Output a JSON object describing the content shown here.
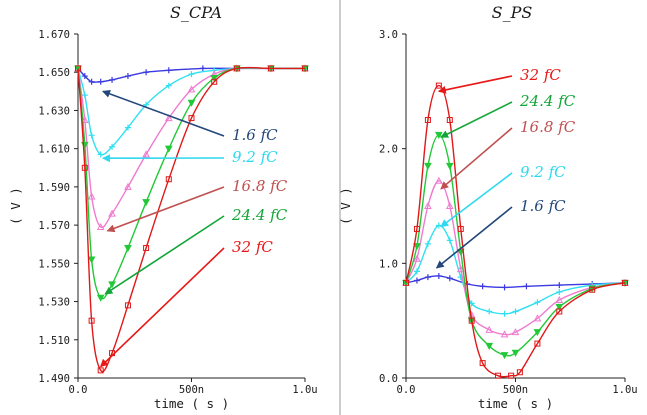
{
  "chart_data": [
    {
      "type": "line",
      "title": "S_CPA",
      "xlabel": "time ( s )",
      "ylabel": "( V )",
      "xlim": [
        0,
        1.0
      ],
      "ylim": [
        1.49,
        1.67
      ],
      "x_ticks": [
        {
          "v": 0,
          "label": "0.0"
        },
        {
          "v": 0.5,
          "label": "500n"
        },
        {
          "v": 1.0,
          "label": "1.0u"
        }
      ],
      "y_ticks": [
        {
          "v": 1.49,
          "label": "1.490"
        },
        {
          "v": 1.51,
          "label": "1.510"
        },
        {
          "v": 1.53,
          "label": "1.530"
        },
        {
          "v": 1.55,
          "label": "1.550"
        },
        {
          "v": 1.57,
          "label": "1.570"
        },
        {
          "v": 1.59,
          "label": "1.590"
        },
        {
          "v": 1.61,
          "label": "1.610"
        },
        {
          "v": 1.63,
          "label": "1.630"
        },
        {
          "v": 1.65,
          "label": "1.650"
        },
        {
          "v": 1.67,
          "label": "1.670"
        }
      ],
      "series": [
        {
          "name": "1.6 fC",
          "color": "#3a3ae0",
          "marker": "plus",
          "x": [
            0,
            0.03,
            0.06,
            0.1,
            0.15,
            0.22,
            0.3,
            0.4,
            0.55,
            0.7,
            0.85,
            1.0
          ],
          "y": [
            1.652,
            1.648,
            1.645,
            1.645,
            1.646,
            1.648,
            1.65,
            1.651,
            1.652,
            1.652,
            1.652,
            1.652
          ]
        },
        {
          "name": "9.2 fC",
          "color": "#2fe0f0",
          "marker": "plus",
          "x": [
            0,
            0.03,
            0.06,
            0.1,
            0.15,
            0.22,
            0.3,
            0.4,
            0.5,
            0.6,
            0.7,
            0.85,
            1.0
          ],
          "y": [
            1.652,
            1.638,
            1.617,
            1.607,
            1.611,
            1.621,
            1.633,
            1.643,
            1.649,
            1.651,
            1.652,
            1.652,
            1.652
          ]
        },
        {
          "name": "16.8 fC",
          "color": "#f07ad0",
          "marker": "triangle",
          "x": [
            0,
            0.03,
            0.06,
            0.1,
            0.15,
            0.22,
            0.3,
            0.4,
            0.5,
            0.6,
            0.7,
            0.85,
            1.0
          ],
          "y": [
            1.652,
            1.625,
            1.585,
            1.569,
            1.576,
            1.59,
            1.607,
            1.626,
            1.641,
            1.649,
            1.652,
            1.652,
            1.652
          ]
        },
        {
          "name": "24.4 fC",
          "color": "#22c837",
          "marker": "triangle-down",
          "x": [
            0,
            0.03,
            0.06,
            0.1,
            0.15,
            0.22,
            0.3,
            0.4,
            0.5,
            0.6,
            0.7,
            0.85,
            1.0
          ],
          "y": [
            1.652,
            1.612,
            1.552,
            1.532,
            1.539,
            1.558,
            1.582,
            1.61,
            1.634,
            1.647,
            1.652,
            1.652,
            1.652
          ]
        },
        {
          "name": "32 fC",
          "color": "#e01818",
          "marker": "square",
          "x": [
            0,
            0.03,
            0.06,
            0.1,
            0.15,
            0.22,
            0.3,
            0.4,
            0.5,
            0.6,
            0.7,
            0.85,
            1.0
          ],
          "y": [
            1.652,
            1.6,
            1.52,
            1.494,
            1.503,
            1.528,
            1.558,
            1.594,
            1.626,
            1.645,
            1.652,
            1.652,
            1.652
          ]
        }
      ],
      "annotations": [
        {
          "text": "1.6 fC",
          "color": "#23477a",
          "target": [
            0.11,
            1.64
          ]
        },
        {
          "text": "9.2 fC",
          "color": "#2fd8ee",
          "target": [
            0.11,
            1.605
          ]
        },
        {
          "text": "16.8 fC",
          "color": "#c05050",
          "target": [
            0.13,
            1.567
          ]
        },
        {
          "text": "24.4 fC",
          "color": "#12a538",
          "target": [
            0.12,
            1.534
          ]
        },
        {
          "text": "32 fC",
          "color": "#e81818",
          "target": [
            0.1,
            1.496
          ]
        }
      ]
    },
    {
      "type": "line",
      "title": "S_PS",
      "xlabel": "time ( s )",
      "ylabel": "( V )",
      "xlim": [
        0,
        1.0
      ],
      "ylim": [
        0,
        3.0
      ],
      "x_ticks": [
        {
          "v": 0,
          "label": "0.0"
        },
        {
          "v": 0.5,
          "label": "500n"
        },
        {
          "v": 1.0,
          "label": "1.0u"
        }
      ],
      "y_ticks": [
        {
          "v": 0,
          "label": "0.0"
        },
        {
          "v": 1.0,
          "label": "1.0"
        },
        {
          "v": 2.0,
          "label": "2.0"
        },
        {
          "v": 3.0,
          "label": "3.0"
        }
      ],
      "series": [
        {
          "name": "1.6 fC",
          "color": "#3a3ae0",
          "marker": "plus",
          "x": [
            0,
            0.05,
            0.1,
            0.15,
            0.2,
            0.28,
            0.35,
            0.45,
            0.55,
            0.7,
            0.85,
            1.0
          ],
          "y": [
            0.83,
            0.85,
            0.88,
            0.89,
            0.87,
            0.82,
            0.8,
            0.79,
            0.8,
            0.81,
            0.82,
            0.83
          ]
        },
        {
          "name": "9.2 fC",
          "color": "#2fe0f0",
          "marker": "plus",
          "x": [
            0,
            0.05,
            0.1,
            0.15,
            0.2,
            0.25,
            0.3,
            0.38,
            0.45,
            0.5,
            0.6,
            0.7,
            0.85,
            1.0
          ],
          "y": [
            0.83,
            0.93,
            1.17,
            1.33,
            1.2,
            0.88,
            0.65,
            0.58,
            0.56,
            0.58,
            0.66,
            0.75,
            0.81,
            0.83
          ]
        },
        {
          "name": "16.8 fC",
          "color": "#f07ad0",
          "marker": "triangle",
          "x": [
            0,
            0.05,
            0.1,
            0.15,
            0.2,
            0.25,
            0.3,
            0.38,
            0.45,
            0.5,
            0.6,
            0.7,
            0.85,
            1.0
          ],
          "y": [
            0.83,
            1.04,
            1.5,
            1.72,
            1.5,
            0.95,
            0.55,
            0.42,
            0.38,
            0.4,
            0.52,
            0.68,
            0.79,
            0.83
          ]
        },
        {
          "name": "24.4 fC",
          "color": "#22c837",
          "marker": "triangle-down",
          "x": [
            0,
            0.05,
            0.1,
            0.15,
            0.2,
            0.25,
            0.3,
            0.38,
            0.45,
            0.5,
            0.6,
            0.7,
            0.85,
            1.0
          ],
          "y": [
            0.83,
            1.15,
            1.85,
            2.12,
            1.85,
            1.1,
            0.5,
            0.28,
            0.2,
            0.22,
            0.4,
            0.62,
            0.78,
            0.83
          ]
        },
        {
          "name": "32 fC",
          "color": "#e01818",
          "marker": "square",
          "x": [
            0,
            0.05,
            0.1,
            0.15,
            0.2,
            0.25,
            0.3,
            0.35,
            0.42,
            0.48,
            0.52,
            0.6,
            0.7,
            0.85,
            1.0
          ],
          "y": [
            0.83,
            1.3,
            2.25,
            2.55,
            2.25,
            1.3,
            0.5,
            0.13,
            0.02,
            0.02,
            0.05,
            0.3,
            0.58,
            0.77,
            0.83
          ]
        }
      ],
      "annotations": [
        {
          "text": "32 fC",
          "color": "#e81818",
          "target": [
            0.15,
            2.5
          ]
        },
        {
          "text": "24.4 fC",
          "color": "#12a538",
          "target": [
            0.16,
            2.1
          ]
        },
        {
          "text": "16.8 fC",
          "color": "#c05050",
          "target": [
            0.16,
            1.65
          ]
        },
        {
          "text": "9.2 fC",
          "color": "#2fd8ee",
          "target": [
            0.16,
            1.32
          ]
        },
        {
          "text": "1.6 fC",
          "color": "#23477a",
          "target": [
            0.14,
            0.96
          ]
        }
      ]
    }
  ]
}
